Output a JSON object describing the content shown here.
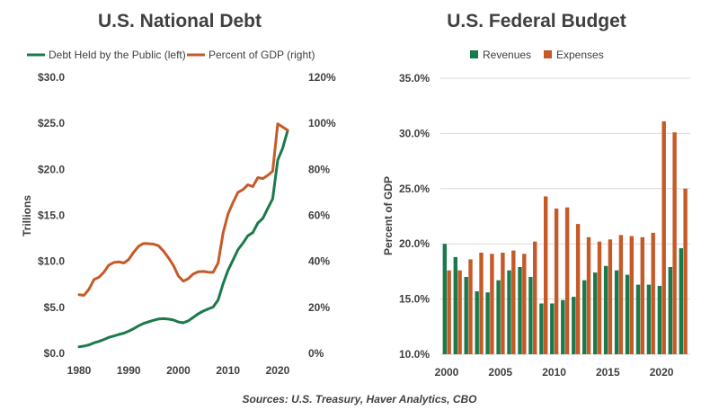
{
  "chart_data": [
    {
      "type": "line",
      "title": "U.S. National Debt",
      "xlabel": "",
      "ylabel": "Trillions",
      "y2label": "",
      "xlim": [
        1980,
        2022
      ],
      "ylim": [
        0,
        30
      ],
      "y2lim": [
        0,
        120
      ],
      "x_ticks": [
        "1980",
        "1990",
        "2000",
        "2010",
        "2020"
      ],
      "y_ticks": [
        "$0.0",
        "$5.0",
        "$10.0",
        "$15.0",
        "$20.0",
        "$25.0",
        "$30.0"
      ],
      "y2_ticks": [
        "0%",
        "20%",
        "40%",
        "60%",
        "80%",
        "100%",
        "120%"
      ],
      "grid": false,
      "legend": "top",
      "series": [
        {
          "name": "Debt Held by the Public (left)",
          "axis": "left",
          "color": "#1a7a4c",
          "x": [
            1980,
            1981,
            1982,
            1983,
            1984,
            1985,
            1986,
            1987,
            1988,
            1989,
            1990,
            1991,
            1992,
            1993,
            1994,
            1995,
            1996,
            1997,
            1998,
            1999,
            2000,
            2001,
            2002,
            2003,
            2004,
            2005,
            2006,
            2007,
            2008,
            2009,
            2010,
            2011,
            2012,
            2013,
            2014,
            2015,
            2016,
            2017,
            2018,
            2019,
            2020,
            2021,
            2022
          ],
          "values": [
            0.71,
            0.79,
            0.92,
            1.14,
            1.3,
            1.5,
            1.74,
            1.89,
            2.05,
            2.19,
            2.41,
            2.69,
            3.0,
            3.25,
            3.43,
            3.6,
            3.73,
            3.77,
            3.72,
            3.63,
            3.41,
            3.32,
            3.54,
            3.91,
            4.3,
            4.59,
            4.83,
            5.03,
            5.8,
            7.55,
            9.02,
            10.13,
            11.28,
            11.98,
            12.78,
            13.12,
            14.17,
            14.67,
            15.75,
            16.8,
            21.0,
            22.3,
            24.2
          ]
        },
        {
          "name": "Percent of GDP (right)",
          "axis": "right",
          "color": "#c55a28",
          "x": [
            1980,
            1981,
            1982,
            1983,
            1984,
            1985,
            1986,
            1987,
            1988,
            1989,
            1990,
            1991,
            1992,
            1993,
            1994,
            1995,
            1996,
            1997,
            1998,
            1999,
            2000,
            2001,
            2002,
            2003,
            2004,
            2005,
            2006,
            2007,
            2008,
            2009,
            2010,
            2011,
            2012,
            2013,
            2014,
            2015,
            2016,
            2017,
            2018,
            2019,
            2020,
            2021,
            2022
          ],
          "values": [
            25.5,
            25.2,
            27.9,
            32.1,
            33.1,
            35.3,
            38.4,
            39.5,
            39.8,
            39.3,
            40.8,
            44.0,
            46.6,
            47.8,
            47.7,
            47.5,
            46.8,
            44.5,
            41.6,
            38.2,
            33.6,
            31.4,
            32.5,
            34.5,
            35.5,
            35.6,
            35.3,
            35.2,
            39.3,
            52.3,
            60.6,
            65.5,
            70.0,
            71.2,
            73.3,
            72.5,
            76.4,
            76.0,
            77.4,
            79.2,
            99.8,
            98.4,
            97.0
          ]
        }
      ]
    },
    {
      "type": "bar",
      "title": "U.S. Federal Budget",
      "xlabel": "",
      "ylabel": "Percent of GDP",
      "xlim": [
        2000,
        2022
      ],
      "ylim": [
        10,
        35
      ],
      "x_ticks": [
        "2000",
        "2005",
        "2010",
        "2015",
        "2020"
      ],
      "y_ticks": [
        "10.0%",
        "15.0%",
        "20.0%",
        "25.0%",
        "30.0%",
        "35.0%"
      ],
      "grid": true,
      "legend": "top",
      "categories": [
        2000,
        2001,
        2002,
        2003,
        2004,
        2005,
        2006,
        2007,
        2008,
        2009,
        2010,
        2011,
        2012,
        2013,
        2014,
        2015,
        2016,
        2017,
        2018,
        2019,
        2020,
        2021,
        2022
      ],
      "series": [
        {
          "name": "Revenues",
          "color": "#1a7a4c",
          "values": [
            20.0,
            18.8,
            17.0,
            15.7,
            15.6,
            16.7,
            17.6,
            17.9,
            17.0,
            14.6,
            14.6,
            14.9,
            15.2,
            16.7,
            17.4,
            18.0,
            17.6,
            17.2,
            16.3,
            16.3,
            16.2,
            17.9,
            19.6
          ]
        },
        {
          "name": "Expenses",
          "color": "#c55a28",
          "values": [
            17.6,
            17.6,
            18.6,
            19.2,
            19.1,
            19.2,
            19.4,
            19.1,
            20.2,
            24.3,
            23.2,
            23.3,
            21.8,
            20.6,
            20.2,
            20.4,
            20.8,
            20.7,
            20.6,
            21.0,
            31.1,
            30.1,
            25.0
          ]
        }
      ]
    }
  ],
  "footer": {
    "source": "Sources: U.S. Treasury, Haver Analytics, CBO"
  }
}
